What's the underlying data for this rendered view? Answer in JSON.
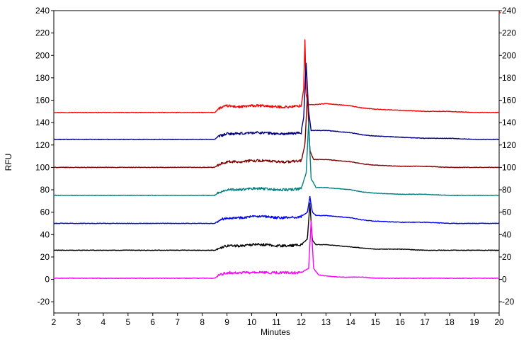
{
  "chart_data": {
    "type": "line",
    "title": "",
    "xlabel": "Minutes",
    "ylabel": "RFU",
    "xlim": [
      2,
      20
    ],
    "ylim": [
      -30,
      240
    ],
    "x_ticks": [
      2,
      3,
      4,
      5,
      6,
      7,
      8,
      9,
      10,
      11,
      12,
      13,
      14,
      15,
      16,
      17,
      18,
      19,
      20
    ],
    "y_ticks": [
      -20,
      0,
      20,
      40,
      60,
      80,
      100,
      120,
      140,
      160,
      180,
      200,
      220,
      240
    ],
    "right_axis_ticks": [
      -20,
      0,
      20,
      40,
      60,
      80,
      100,
      120,
      140,
      160,
      180,
      200,
      220,
      240
    ],
    "grid": false,
    "legend": "none",
    "series": [
      {
        "color": "#ff0000",
        "baseline": 149,
        "peak_x": 12.15,
        "peak_y": 214,
        "x": [
          2,
          8.5,
          8.7,
          9.0,
          9.5,
          10.0,
          10.5,
          11.0,
          11.5,
          12.0,
          12.1,
          12.15,
          12.2,
          12.3,
          12.5,
          13.0,
          13.5,
          14.0,
          14.5,
          15.0,
          16.0,
          17.0,
          18.0,
          19.0,
          20
        ],
        "y": [
          149,
          149,
          153,
          155,
          154,
          155,
          155,
          154,
          154,
          155,
          170,
          214,
          165,
          156,
          156,
          157,
          156,
          155,
          153,
          152,
          151,
          150,
          150,
          149,
          149
        ]
      },
      {
        "color": "#000080",
        "baseline": 125,
        "peak_x": 12.2,
        "peak_y": 193,
        "x": [
          2,
          8.5,
          8.7,
          9.0,
          9.5,
          10.0,
          10.5,
          11.0,
          11.5,
          12.0,
          12.1,
          12.2,
          12.3,
          12.4,
          12.6,
          13.0,
          13.5,
          14.0,
          14.5,
          15.0,
          16.0,
          17.0,
          18.0,
          19.0,
          20
        ],
        "y": [
          125,
          125,
          128,
          130,
          130,
          131,
          131,
          130,
          130,
          131,
          145,
          193,
          150,
          133,
          133,
          133,
          132,
          131,
          129,
          128,
          127,
          126,
          126,
          125,
          125
        ]
      },
      {
        "color": "#800000",
        "baseline": 100,
        "peak_x": 12.25,
        "peak_y": 165,
        "x": [
          2,
          8.5,
          8.7,
          9.0,
          9.5,
          10.0,
          10.5,
          11.0,
          11.5,
          12.0,
          12.15,
          12.25,
          12.35,
          12.5,
          13.0,
          13.5,
          14.0,
          14.5,
          15.0,
          16.0,
          17.0,
          18.0,
          19.0,
          20
        ],
        "y": [
          100,
          100,
          103,
          105,
          105,
          106,
          106,
          105,
          105,
          106,
          120,
          165,
          115,
          107,
          107,
          106,
          105,
          103,
          102,
          101,
          101,
          100,
          100,
          100
        ]
      },
      {
        "color": "#008080",
        "baseline": 75,
        "peak_x": 12.3,
        "peak_y": 140,
        "x": [
          2,
          8.5,
          8.7,
          9.0,
          9.5,
          10.0,
          10.5,
          11.0,
          11.5,
          12.0,
          12.2,
          12.3,
          12.4,
          12.6,
          13.0,
          13.5,
          14.0,
          14.5,
          15.0,
          16.0,
          17.0,
          18.0,
          19.0,
          20
        ],
        "y": [
          75,
          75,
          78,
          80,
          80,
          81,
          81,
          80,
          80,
          81,
          95,
          140,
          90,
          82,
          82,
          81,
          80,
          78,
          77,
          76,
          76,
          75,
          75,
          75
        ]
      },
      {
        "color": "#0000ff",
        "baseline": 50,
        "peak_x": 12.35,
        "peak_y": 74,
        "x": [
          2,
          8.5,
          8.7,
          9.0,
          9.5,
          10.0,
          10.5,
          11.0,
          11.5,
          12.0,
          12.25,
          12.35,
          12.45,
          12.6,
          13.0,
          13.5,
          14.0,
          14.5,
          15.0,
          16.0,
          17.0,
          18.0,
          19.0,
          20
        ],
        "y": [
          50,
          50,
          53,
          55,
          55,
          56,
          56,
          55,
          55,
          56,
          60,
          74,
          60,
          57,
          57,
          56,
          55,
          53,
          52,
          51,
          51,
          50,
          50,
          50
        ]
      },
      {
        "color": "#000000",
        "baseline": 26,
        "peak_x": 12.35,
        "peak_y": 68,
        "x": [
          2,
          8.5,
          8.7,
          9.0,
          9.5,
          10.0,
          10.5,
          11.0,
          11.5,
          12.0,
          12.25,
          12.35,
          12.45,
          12.6,
          13.0,
          13.5,
          14.0,
          14.5,
          15.0,
          16.0,
          17.0,
          18.0,
          19.0,
          20
        ],
        "y": [
          26,
          26,
          28,
          30,
          30,
          31,
          31,
          30,
          30,
          31,
          36,
          68,
          35,
          31,
          31,
          30,
          29,
          28,
          27,
          27,
          26,
          26,
          26,
          26
        ]
      },
      {
        "color": "#ff00ff",
        "baseline": 1,
        "peak_x": 12.4,
        "peak_y": 52,
        "x": [
          2,
          8.5,
          8.7,
          9.0,
          9.5,
          10.0,
          10.5,
          11.0,
          11.5,
          12.0,
          12.3,
          12.4,
          12.5,
          12.7,
          13.0,
          13.5,
          14.0,
          14.5,
          15.0,
          16.0,
          17.0,
          18.0,
          19.0,
          20
        ],
        "y": [
          1,
          1,
          4,
          6,
          6,
          6,
          6,
          6,
          6,
          6,
          10,
          52,
          10,
          4,
          3,
          2,
          2,
          2,
          1,
          1,
          1,
          1,
          1,
          1
        ]
      }
    ]
  }
}
